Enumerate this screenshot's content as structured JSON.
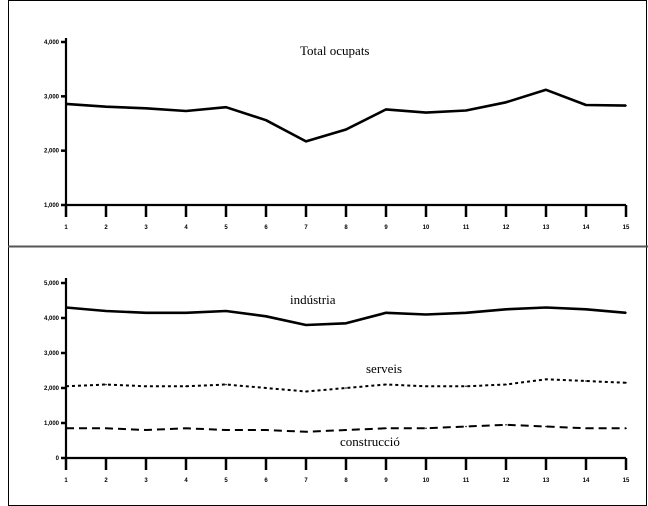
{
  "chart_data": [
    {
      "type": "line",
      "title": "Total ocupats",
      "xlabel": "",
      "ylabel": "",
      "ylim": [
        0,
        3
      ],
      "y_ticks": [
        0,
        1,
        2,
        3
      ],
      "y_tick_labels": [
        "1,000",
        "2,000",
        "3,000",
        "4,000"
      ],
      "x": [
        1,
        2,
        3,
        4,
        5,
        6,
        7,
        8,
        9,
        10,
        11,
        12,
        13,
        14,
        15
      ],
      "x_tick_labels": [
        "1",
        "2",
        "3",
        "4",
        "5",
        "6",
        "7",
        "8",
        "9",
        "10",
        "11",
        "12",
        "13",
        "14",
        "15"
      ],
      "grid": false,
      "series": [
        {
          "name": "",
          "style": "solid",
          "values": [
            1.86,
            1.81,
            1.78,
            1.73,
            1.8,
            1.56,
            1.17,
            1.39,
            1.76,
            1.7,
            1.74,
            1.89,
            2.12,
            1.84,
            1.83
          ]
        }
      ]
    },
    {
      "type": "line",
      "title": "",
      "xlabel": "",
      "ylabel": "",
      "ylim": [
        0,
        5
      ],
      "y_ticks": [
        0,
        1,
        2,
        3,
        4,
        5
      ],
      "y_tick_labels": [
        "0",
        "1,000",
        "2,000",
        "3,000",
        "4,000",
        "5,000"
      ],
      "x": [
        1,
        2,
        3,
        4,
        5,
        6,
        7,
        8,
        9,
        10,
        11,
        12,
        13,
        14,
        15
      ],
      "x_tick_labels": [
        "1",
        "2",
        "3",
        "4",
        "5",
        "6",
        "7",
        "8",
        "9",
        "10",
        "11",
        "12",
        "13",
        "14",
        "15"
      ],
      "grid": false,
      "series": [
        {
          "name": "indústria",
          "style": "solid",
          "values": [
            4.3,
            4.2,
            4.15,
            4.15,
            4.2,
            4.05,
            3.8,
            3.85,
            4.15,
            4.1,
            4.15,
            4.25,
            4.3,
            4.25,
            4.15
          ]
        },
        {
          "name": "serveis",
          "style": "dotted",
          "values": [
            2.05,
            2.1,
            2.05,
            2.05,
            2.1,
            2.0,
            1.9,
            2.0,
            2.1,
            2.05,
            2.05,
            2.1,
            2.25,
            2.2,
            2.15
          ]
        },
        {
          "name": "construcció",
          "style": "dashed",
          "values": [
            0.85,
            0.85,
            0.8,
            0.85,
            0.8,
            0.8,
            0.75,
            0.8,
            0.85,
            0.85,
            0.9,
            0.95,
            0.9,
            0.85,
            0.85
          ]
        }
      ]
    }
  ]
}
